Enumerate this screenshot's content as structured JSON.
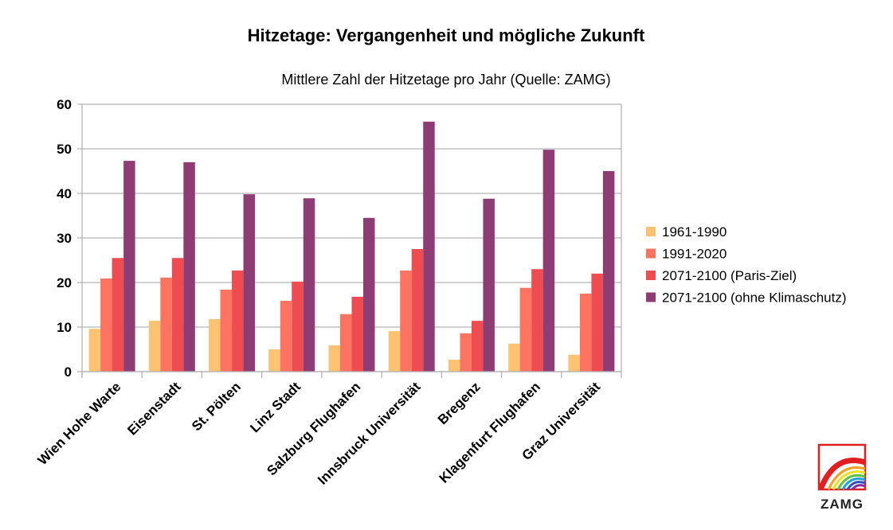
{
  "chart_data": {
    "type": "bar",
    "title": "Hitzetage: Vergangenheit und mögliche Zukunft",
    "subtitle": "Mittlere Zahl der Hitzetage pro Jahr (Quelle: ZAMG)",
    "xlabel": "",
    "ylabel": "",
    "ylim": [
      0,
      60
    ],
    "yticks": [
      "0",
      "10",
      "20",
      "30",
      "40",
      "50",
      "60"
    ],
    "grid": true,
    "legend_position": "right",
    "categories": [
      "Wien Hohe Warte",
      "Eisenstadt",
      "St. Pölten",
      "Linz Stadt",
      "Salzburg Flughafen",
      "Innsbruck Universität",
      "Bregenz",
      "Klagenfurt Flughafen",
      "Graz Universität"
    ],
    "series": [
      {
        "name": "1961-1990",
        "color": "#fdc372",
        "values": [
          9.6,
          11.4,
          11.8,
          5.0,
          5.9,
          9.1,
          2.7,
          6.3,
          3.8
        ]
      },
      {
        "name": "1991-2020",
        "color": "#ff7461",
        "values": [
          20.9,
          21.1,
          18.4,
          15.9,
          12.9,
          22.7,
          8.6,
          18.8,
          17.5
        ]
      },
      {
        "name": "2071-2100 (Paris-Ziel)",
        "color": "#ee4c51",
        "values": [
          25.5,
          25.5,
          22.7,
          20.2,
          16.8,
          27.5,
          11.4,
          23.0,
          22.0
        ]
      },
      {
        "name": "2071-2100 (ohne Klimaschutz)",
        "color": "#8e3d74",
        "values": [
          47.3,
          47.0,
          39.8,
          38.9,
          34.5,
          56.1,
          38.8,
          49.8,
          45.0
        ]
      }
    ]
  },
  "logo": {
    "text": "ZAMG"
  }
}
